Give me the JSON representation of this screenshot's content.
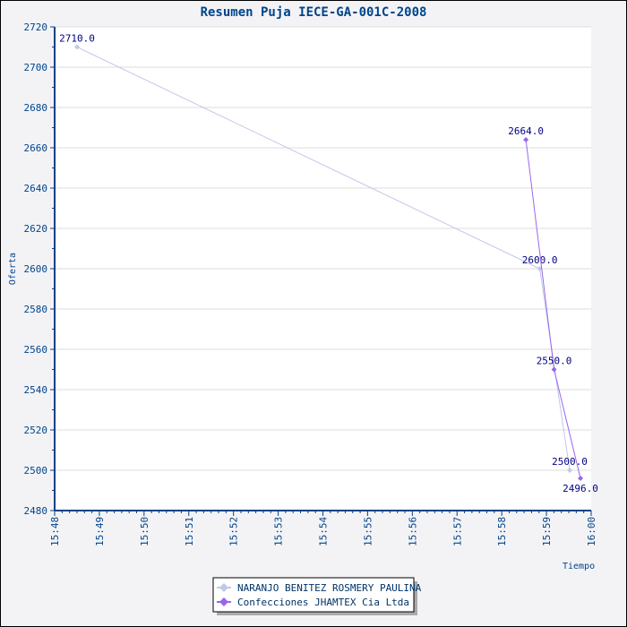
{
  "chart_data": {
    "type": "line",
    "title": "Resumen Puja IECE-GA-001C-2008",
    "xlabel": "Tiempo",
    "ylabel": "Oferta",
    "xlim_minutes": [
      948,
      960
    ],
    "x_tick_labels": [
      "15:48",
      "15:49",
      "15:50",
      "15:51",
      "15:52",
      "15:53",
      "15:54",
      "15:55",
      "15:56",
      "15:57",
      "15:58",
      "15:59",
      "16:00"
    ],
    "ylim": [
      2480,
      2720
    ],
    "y_ticks": [
      2480,
      2500,
      2520,
      2540,
      2560,
      2580,
      2600,
      2620,
      2640,
      2660,
      2680,
      2700,
      2720
    ],
    "grid": true,
    "legend_placement": "bottom-center",
    "series": [
      {
        "name": "NARANJO BENITEZ ROSMERY PAULINA",
        "color": "#c0c8e8",
        "points": [
          {
            "t": 948.5,
            "y": 2710,
            "label": "2710.0"
          },
          {
            "t": 958.85,
            "y": 2600,
            "label": "2600.0"
          },
          {
            "t": 959.52,
            "y": 2500,
            "label": "2500.0"
          }
        ]
      },
      {
        "name": "Confecciones JHAMTEX Cia Ltda",
        "color": "#9966ee",
        "points": [
          {
            "t": 958.54,
            "y": 2664,
            "label": "2664.0"
          },
          {
            "t": 959.17,
            "y": 2550,
            "label": "2550.0"
          },
          {
            "t": 959.76,
            "y": 2496,
            "label": "2496.0"
          }
        ]
      }
    ]
  }
}
